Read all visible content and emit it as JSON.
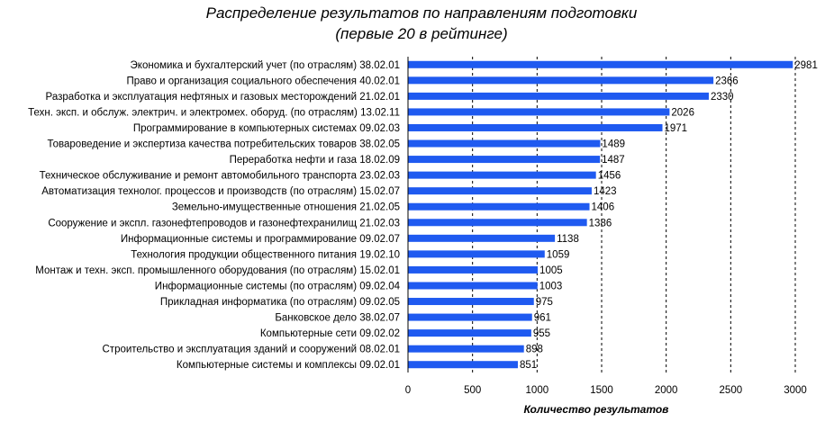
{
  "chart_data": {
    "type": "bar",
    "orientation": "horizontal",
    "title": "Распределение результатов по направлениям подготовки",
    "subtitle": "(первые 20 в рейтинге)",
    "xlabel": "Количество результатов",
    "ylabel": "",
    "xlim": [
      0,
      3000
    ],
    "xticks": [
      0,
      500,
      1000,
      1500,
      2000,
      2500,
      3000
    ],
    "grid": "vertical-dashed",
    "bar_color": "#1f5af0",
    "categories": [
      "Экономика и бухгалтерский учет (по отраслям) 38.02.01",
      "Право и организация социального обеспечения 40.02.01",
      "Разработка и эксплуатация нефтяных и газовых месторождений 21.02.01",
      "Техн. эксп. и обслуж. электрич. и электромех. оборуд. (по отраслям) 13.02.11",
      "Программирование в компьютерных системах 09.02.03",
      "Товароведение и экспертиза качества потребительских товаров 38.02.05",
      "Переработка нефти и газа 18.02.09",
      "Техническое обслуживание и ремонт автомобильного транспорта 23.02.03",
      "Автоматизация технолог. процессов и производств (по отраслям) 15.02.07",
      "Земельно-имущественные отношения 21.02.05",
      "Сооружение и экспл. газонефтепроводов и газонефтехранилищ 21.02.03",
      "Информационные системы и программирование 09.02.07",
      "Технология продукции общественного питания 19.02.10",
      "Монтаж и техн. эксп. промышленного оборудования (по отраслям) 15.02.01",
      "Информационные системы (по отраслям) 09.02.04",
      "Прикладная информатика (по отраслям) 09.02.05",
      "Банковское дело 38.02.07",
      "Компьютерные сети 09.02.02",
      "Строительство и эксплуатация зданий и сооружений 08.02.01",
      "Компьютерные системы и комплексы 09.02.01"
    ],
    "values": [
      2981,
      2366,
      2330,
      2026,
      1971,
      1489,
      1487,
      1456,
      1423,
      1406,
      1386,
      1138,
      1059,
      1005,
      1003,
      975,
      961,
      955,
      898,
      851
    ]
  }
}
